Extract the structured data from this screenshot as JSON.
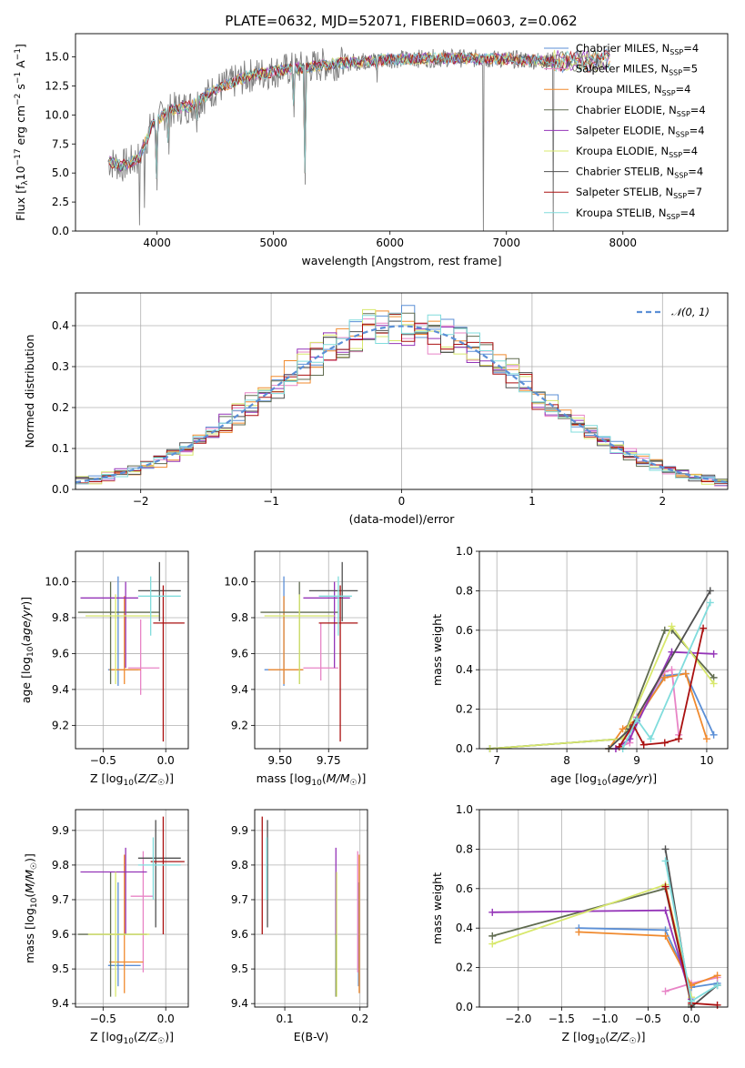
{
  "title": "PLATE=0632, MJD=52071, FIBERID=0603, z=0.062",
  "colors": [
    "#5b8fd6",
    "#e884c6",
    "#f08a2e",
    "#606c50",
    "#9434b8",
    "#d8e86c",
    "#505050",
    "#aa1010",
    "#80dcdc"
  ],
  "legend": [
    {
      "base": "Chabrier MILES, N",
      "sub": "SSP",
      "tail": "=4"
    },
    {
      "base": "Salpeter MILES, N",
      "sub": "SSP",
      "tail": "=5"
    },
    {
      "base": "Kroupa MILES, N",
      "sub": "SSP",
      "tail": "=4"
    },
    {
      "base": "Chabrier ELODIE, N",
      "sub": "SSP",
      "tail": "=4"
    },
    {
      "base": "Salpeter ELODIE, N",
      "sub": "SSP",
      "tail": "=4"
    },
    {
      "base": "Kroupa ELODIE, N",
      "sub": "SSP",
      "tail": "=4"
    },
    {
      "base": "Chabrier STELIB, N",
      "sub": "SSP",
      "tail": "=4"
    },
    {
      "base": "Salpeter STELIB, N",
      "sub": "SSP",
      "tail": "=7"
    },
    {
      "base": "Kroupa STELIB, N",
      "sub": "SSP",
      "tail": "=4"
    }
  ],
  "chart_data": [
    {
      "type": "line",
      "xlabel": "wavelength [Angstrom, rest frame]",
      "ylabel": "Flux [f_λ 10^-17 erg cm^-2 s^-1 A^-1]",
      "xlim": [
        3300,
        8900
      ],
      "ylim": [
        0,
        17
      ],
      "xticks": [
        4000,
        5000,
        6000,
        7000,
        8000
      ],
      "yticks": [
        0.0,
        2.5,
        5.0,
        7.5,
        10.0,
        12.5,
        15.0
      ],
      "continuum": [
        [
          3580,
          6.0
        ],
        [
          3700,
          5.6
        ],
        [
          3850,
          6.3
        ],
        [
          3950,
          9.0
        ],
        [
          4100,
          10.4
        ],
        [
          4300,
          10.8
        ],
        [
          4500,
          12.2
        ],
        [
          4800,
          13.4
        ],
        [
          5100,
          13.9
        ],
        [
          5500,
          14.4
        ],
        [
          6000,
          14.8
        ],
        [
          6500,
          14.9
        ],
        [
          7000,
          14.8
        ],
        [
          7500,
          14.6
        ],
        [
          7800,
          14.7
        ]
      ],
      "absorption_dips": [
        [
          3850,
          0.5
        ],
        [
          3890,
          2.0
        ],
        [
          4000,
          3.5
        ],
        [
          4100,
          6.6
        ],
        [
          4340,
          8.5
        ],
        [
          5175,
          9.8
        ],
        [
          5270,
          4.0
        ],
        [
          5890,
          12.8
        ],
        [
          6800,
          0.0
        ],
        [
          7400,
          0.0
        ]
      ]
    },
    {
      "type": "bar",
      "xlabel": "(data-model)/error",
      "ylabel": "Normed distribution",
      "xlim": [
        -2.5,
        2.5
      ],
      "ylim": [
        0,
        0.48
      ],
      "xticks": [
        -2,
        -1,
        0,
        1,
        2
      ],
      "yticks": [
        0.0,
        0.1,
        0.2,
        0.3,
        0.4
      ],
      "bin_width": 0.1,
      "legend_label": "𝒩(0, 1)",
      "reference": "standard normal density"
    },
    {
      "type": "scatter",
      "xlabel": "Z [log10(Z/Z☉)]",
      "ylabel": "age [log10(age/yr)]",
      "xlim": [
        -0.72,
        0.18
      ],
      "ylim": [
        9.07,
        10.17
      ],
      "xticks": [
        -0.5,
        0.0
      ],
      "yticks": [
        9.2,
        9.4,
        9.6,
        9.8,
        10.0
      ],
      "points": [
        {
          "x": -0.38,
          "y": 9.51,
          "xlo": -0.46,
          "xhi": -0.22,
          "ylo": 9.42,
          "yhi": 10.03
        },
        {
          "x": -0.2,
          "y": 9.52,
          "xlo": -0.3,
          "xhi": -0.05,
          "ylo": 9.37,
          "yhi": 9.79
        },
        {
          "x": -0.33,
          "y": 9.51,
          "xlo": -0.45,
          "xhi": -0.2,
          "ylo": 9.43,
          "yhi": 9.92
        },
        {
          "x": -0.44,
          "y": 9.83,
          "xlo": -0.7,
          "xhi": -0.05,
          "ylo": 9.43,
          "yhi": 10.0
        },
        {
          "x": -0.32,
          "y": 9.91,
          "xlo": -0.68,
          "xhi": -0.22,
          "ylo": 9.52,
          "yhi": 10.0
        },
        {
          "x": -0.4,
          "y": 9.81,
          "xlo": -0.64,
          "xhi": -0.05,
          "ylo": 9.43,
          "yhi": 9.93
        },
        {
          "x": -0.05,
          "y": 9.95,
          "xlo": -0.22,
          "xhi": 0.12,
          "ylo": 9.78,
          "yhi": 10.11
        },
        {
          "x": -0.02,
          "y": 9.77,
          "xlo": -0.1,
          "xhi": 0.15,
          "ylo": 9.11,
          "yhi": 9.98
        },
        {
          "x": -0.12,
          "y": 9.92,
          "xlo": -0.22,
          "xhi": 0.12,
          "ylo": 9.7,
          "yhi": 10.03
        }
      ]
    },
    {
      "type": "scatter",
      "xlabel": "mass [log10(M/M☉)]",
      "ylabel": "",
      "xlim": [
        9.37,
        9.95
      ],
      "ylim": [
        9.07,
        10.17
      ],
      "xticks": [
        9.5,
        9.75
      ],
      "yticks": [
        9.2,
        9.4,
        9.6,
        9.8,
        10.0
      ],
      "points": [
        {
          "x": 9.52,
          "y": 9.51,
          "xlo": 9.42,
          "xhi": 9.62,
          "ylo": 9.42,
          "yhi": 10.03
        },
        {
          "x": 9.71,
          "y": 9.52,
          "xlo": 9.62,
          "xhi": 9.8,
          "ylo": 9.45,
          "yhi": 9.77
        },
        {
          "x": 9.52,
          "y": 9.51,
          "xlo": 9.44,
          "xhi": 9.62,
          "ylo": 9.43,
          "yhi": 9.92
        },
        {
          "x": 9.6,
          "y": 9.83,
          "xlo": 9.4,
          "xhi": 9.8,
          "ylo": 9.43,
          "yhi": 10.0
        },
        {
          "x": 9.78,
          "y": 9.91,
          "xlo": 9.62,
          "xhi": 9.86,
          "ylo": 9.52,
          "yhi": 10.0
        },
        {
          "x": 9.6,
          "y": 9.81,
          "xlo": 9.42,
          "xhi": 9.78,
          "ylo": 9.43,
          "yhi": 9.93
        },
        {
          "x": 9.82,
          "y": 9.95,
          "xlo": 9.65,
          "xhi": 9.9,
          "ylo": 9.78,
          "yhi": 10.11
        },
        {
          "x": 9.81,
          "y": 9.77,
          "xlo": 9.7,
          "xhi": 9.9,
          "ylo": 9.11,
          "yhi": 9.98
        },
        {
          "x": 9.8,
          "y": 9.92,
          "xlo": 9.7,
          "xhi": 9.87,
          "ylo": 9.7,
          "yhi": 10.03
        }
      ]
    },
    {
      "type": "line",
      "xlabel": "age [log10(age/yr)]",
      "ylabel": "mass weight",
      "xlim": [
        6.75,
        10.3
      ],
      "ylim": [
        0.0,
        1.0
      ],
      "xticks": [
        7,
        8,
        9,
        10
      ],
      "yticks": [
        0.0,
        0.2,
        0.4,
        0.6,
        0.8,
        1.0
      ],
      "series": [
        {
          "x": [
            6.9,
            8.8,
            9.0,
            9.4,
            9.7,
            10.1
          ],
          "y": [
            0.0,
            0.05,
            0.14,
            0.37,
            0.38,
            0.07
          ]
        },
        {
          "x": [
            8.7,
            8.9,
            9.0,
            9.4,
            9.5,
            9.6
          ],
          "y": [
            0.0,
            0.03,
            0.16,
            0.39,
            0.4,
            0.07
          ]
        },
        {
          "x": [
            8.6,
            8.8,
            9.0,
            9.4,
            9.7,
            10.0
          ],
          "y": [
            0.0,
            0.1,
            0.15,
            0.36,
            0.38,
            0.05
          ]
        },
        {
          "x": [
            6.9,
            8.8,
            9.4,
            9.5,
            10.1
          ],
          "y": [
            0.0,
            0.05,
            0.6,
            0.6,
            0.36
          ]
        },
        {
          "x": [
            8.7,
            8.9,
            9.5,
            10.1
          ],
          "y": [
            0.0,
            0.05,
            0.49,
            0.48
          ]
        },
        {
          "x": [
            6.9,
            8.8,
            9.5,
            10.1
          ],
          "y": [
            0.0,
            0.05,
            0.62,
            0.33
          ]
        },
        {
          "x": [
            8.6,
            8.9,
            10.05
          ],
          "y": [
            0.0,
            0.1,
            0.8
          ]
        },
        {
          "x": [
            8.75,
            8.95,
            9.1,
            9.4,
            9.6,
            9.95
          ],
          "y": [
            0.01,
            0.12,
            0.02,
            0.03,
            0.05,
            0.61
          ]
        },
        {
          "x": [
            8.8,
            9.0,
            9.2,
            10.05
          ],
          "y": [
            0.0,
            0.15,
            0.05,
            0.74
          ]
        }
      ]
    },
    {
      "type": "scatter",
      "xlabel": "Z [log10(Z/Z☉)]",
      "ylabel": "mass [log10(M/M☉)]",
      "xlim": [
        -0.72,
        0.18
      ],
      "ylim": [
        9.39,
        9.96
      ],
      "xticks": [
        -0.5,
        0.0
      ],
      "yticks": [
        9.4,
        9.5,
        9.6,
        9.7,
        9.8,
        9.9
      ],
      "points": [
        {
          "x": -0.38,
          "y": 9.51,
          "xlo": -0.46,
          "xhi": -0.2,
          "ylo": 9.45,
          "yhi": 9.75
        },
        {
          "x": -0.18,
          "y": 9.71,
          "xlo": -0.28,
          "xhi": -0.1,
          "ylo": 9.49,
          "yhi": 9.84
        },
        {
          "x": -0.33,
          "y": 9.52,
          "xlo": -0.45,
          "xhi": -0.18,
          "ylo": 9.43,
          "yhi": 9.83
        },
        {
          "x": -0.44,
          "y": 9.6,
          "xlo": -0.7,
          "xhi": -0.15,
          "ylo": 9.42,
          "yhi": 9.78
        },
        {
          "x": -0.32,
          "y": 9.78,
          "xlo": -0.68,
          "xhi": -0.15,
          "ylo": 9.6,
          "yhi": 9.85
        },
        {
          "x": -0.4,
          "y": 9.6,
          "xlo": -0.62,
          "xhi": -0.13,
          "ylo": 9.42,
          "yhi": 9.78
        },
        {
          "x": -0.08,
          "y": 9.82,
          "xlo": -0.22,
          "xhi": 0.12,
          "ylo": 9.62,
          "yhi": 9.93
        },
        {
          "x": -0.02,
          "y": 9.81,
          "xlo": -0.12,
          "xhi": 0.15,
          "ylo": 9.6,
          "yhi": 9.94
        },
        {
          "x": -0.1,
          "y": 9.8,
          "xlo": -0.22,
          "xhi": 0.12,
          "ylo": 9.7,
          "yhi": 9.88
        }
      ]
    },
    {
      "type": "scatter",
      "xlabel": "E(B-V)",
      "ylabel": "",
      "xlim": [
        0.06,
        0.21
      ],
      "ylim": [
        9.39,
        9.96
      ],
      "xticks": [
        0.1,
        0.2
      ],
      "yticks": [
        9.4,
        9.5,
        9.6,
        9.7,
        9.8,
        9.9
      ],
      "points": [
        {
          "x": 0.198,
          "ylo": 9.45,
          "yhi": 9.75
        },
        {
          "x": 0.197,
          "ylo": 9.49,
          "yhi": 9.84
        },
        {
          "x": 0.199,
          "ylo": 9.43,
          "yhi": 9.83
        },
        {
          "x": 0.168,
          "ylo": 9.42,
          "yhi": 9.78
        },
        {
          "x": 0.168,
          "ylo": 9.6,
          "yhi": 9.85
        },
        {
          "x": 0.169,
          "ylo": 9.42,
          "yhi": 9.78
        },
        {
          "x": 0.077,
          "ylo": 9.62,
          "yhi": 9.93
        },
        {
          "x": 0.07,
          "ylo": 9.6,
          "yhi": 9.94
        },
        {
          "x": 0.076,
          "ylo": 9.7,
          "yhi": 9.88
        }
      ]
    },
    {
      "type": "line",
      "xlabel": "Z [log10(Z/Z☉)]",
      "ylabel": "mass weight",
      "xlim": [
        -2.45,
        0.42
      ],
      "ylim": [
        0.0,
        1.0
      ],
      "xticks": [
        -2.0,
        -1.5,
        -1.0,
        -0.5,
        0.0
      ],
      "yticks": [
        0.0,
        0.2,
        0.4,
        0.6,
        0.8,
        1.0
      ],
      "series": [
        {
          "x": [
            -1.3,
            -0.3,
            0.0,
            0.3
          ],
          "y": [
            0.4,
            0.39,
            0.1,
            0.12
          ]
        },
        {
          "x": [
            -0.3,
            0.0,
            0.3
          ],
          "y": [
            0.08,
            0.12,
            0.15
          ]
        },
        {
          "x": [
            -1.3,
            -0.3,
            0.0,
            0.3
          ],
          "y": [
            0.38,
            0.36,
            0.11,
            0.16
          ]
        },
        {
          "x": [
            -2.3,
            -0.3,
            0.0
          ],
          "y": [
            0.36,
            0.6,
            0.01
          ]
        },
        {
          "x": [
            -2.3,
            -0.3,
            0.0
          ],
          "y": [
            0.48,
            0.49,
            0.04
          ]
        },
        {
          "x": [
            -2.3,
            -0.3,
            0.0
          ],
          "y": [
            0.32,
            0.62,
            0.05
          ]
        },
        {
          "x": [
            -0.3,
            0.0,
            0.3
          ],
          "y": [
            0.8,
            0.0,
            0.11
          ]
        },
        {
          "x": [
            -0.3,
            0.0,
            0.3
          ],
          "y": [
            0.61,
            0.02,
            0.01
          ]
        },
        {
          "x": [
            -0.3,
            0.0,
            0.3
          ],
          "y": [
            0.74,
            0.03,
            0.11
          ]
        }
      ]
    }
  ]
}
